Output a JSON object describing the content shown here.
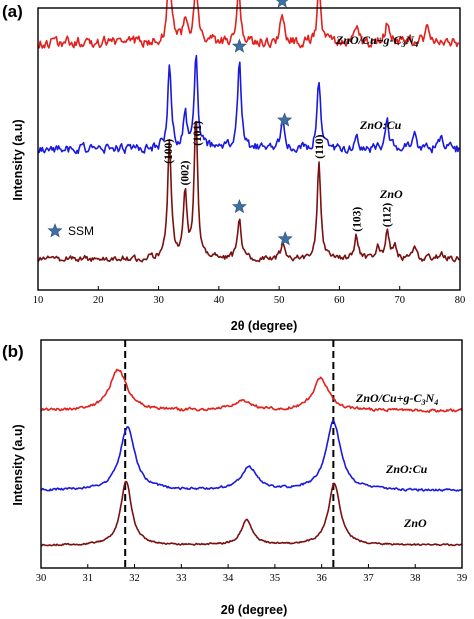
{
  "chart_data": [
    {
      "type": "line",
      "panel": "(a)",
      "xlabel": "2θ (degree)",
      "ylabel": "Intensity (a.u)",
      "xlim": [
        10,
        80
      ],
      "xticks": [
        "10",
        "20",
        "30",
        "40",
        "50",
        "60",
        "70",
        "80"
      ],
      "legend": {
        "marker": "star",
        "label": "SSM"
      },
      "series": [
        {
          "name": "ZnO/Cu+g-C3N4",
          "color": "#e0211e",
          "baseline": 0.88,
          "noise": 0.03,
          "peaks": [
            {
              "x": 31.8,
              "h": 0.28
            },
            {
              "x": 34.4,
              "h": 0.08
            },
            {
              "x": 36.2,
              "h": 0.22
            },
            {
              "x": 43.3,
              "h": 0.18
            },
            {
              "x": 50.5,
              "h": 0.1
            },
            {
              "x": 56.6,
              "h": 0.18
            },
            {
              "x": 62.8,
              "h": 0.04
            },
            {
              "x": 67.9,
              "h": 0.08
            },
            {
              "x": 74.5,
              "h": 0.04
            }
          ],
          "stars_at": [
            43.3,
            50.5
          ]
        },
        {
          "name": "ZnO:Cu",
          "color": "#1a1adf",
          "baseline": 0.5,
          "noise": 0.026,
          "peaks": [
            {
              "x": 31.8,
              "h": 0.3
            },
            {
              "x": 34.4,
              "h": 0.12
            },
            {
              "x": 36.2,
              "h": 0.34
            },
            {
              "x": 43.4,
              "h": 0.32
            },
            {
              "x": 50.6,
              "h": 0.1
            },
            {
              "x": 56.6,
              "h": 0.24
            },
            {
              "x": 62.8,
              "h": 0.06
            },
            {
              "x": 67.9,
              "h": 0.1
            },
            {
              "x": 72.5,
              "h": 0.05
            },
            {
              "x": 76.9,
              "h": 0.05
            }
          ],
          "stars_at": [
            43.4,
            50.9
          ]
        },
        {
          "name": "ZnO",
          "color": "#7a1111",
          "baseline": 0.11,
          "noise": 0.018,
          "peaks": [
            {
              "x": 31.8,
              "h": 0.42
            },
            {
              "x": 34.4,
              "h": 0.24
            },
            {
              "x": 36.2,
              "h": 0.5
            },
            {
              "x": 43.4,
              "h": 0.14
            },
            {
              "x": 50.6,
              "h": 0.06
            },
            {
              "x": 56.6,
              "h": 0.34
            },
            {
              "x": 62.8,
              "h": 0.08
            },
            {
              "x": 66.3,
              "h": 0.04
            },
            {
              "x": 67.9,
              "h": 0.1
            },
            {
              "x": 69.1,
              "h": 0.05
            },
            {
              "x": 72.5,
              "h": 0.03
            },
            {
              "x": 76.9,
              "h": 0.03
            }
          ],
          "stars_at": [
            43.4,
            51.0
          ]
        }
      ],
      "annotations": [
        {
          "label": "(100)",
          "x": 31.6
        },
        {
          "label": "(002)",
          "x": 34.3
        },
        {
          "label": "(101)",
          "x": 36.4
        },
        {
          "label": "(110)",
          "x": 56.6
        },
        {
          "label": "(103)",
          "x": 62.8
        },
        {
          "label": "(112)",
          "x": 67.8
        }
      ]
    },
    {
      "type": "line",
      "panel": "(b)",
      "xlabel": "2θ (degree)",
      "ylabel": "Intensity (a.u)",
      "xlim": [
        30,
        39
      ],
      "xticks": [
        "30",
        "31",
        "32",
        "33",
        "34",
        "35",
        "36",
        "37",
        "38",
        "39"
      ],
      "vlines": [
        31.8,
        36.25
      ],
      "series": [
        {
          "name": "ZnO/Cu+g-C3N4",
          "color": "#e0211e",
          "baseline": 0.69,
          "noise": 0.01,
          "peaks": [
            {
              "x": 31.65,
              "h": 0.18,
              "w": 0.22
            },
            {
              "x": 34.3,
              "h": 0.04,
              "w": 0.25
            },
            {
              "x": 35.98,
              "h": 0.14,
              "w": 0.2
            }
          ]
        },
        {
          "name": "ZnO:Cu",
          "color": "#1a1adf",
          "baseline": 0.34,
          "noise": 0.008,
          "peaks": [
            {
              "x": 31.85,
              "h": 0.28,
              "w": 0.19
            },
            {
              "x": 34.45,
              "h": 0.1,
              "w": 0.2
            },
            {
              "x": 36.25,
              "h": 0.3,
              "w": 0.19
            }
          ]
        },
        {
          "name": "ZnO",
          "color": "#7a1111",
          "baseline": 0.1,
          "noise": 0.006,
          "peaks": [
            {
              "x": 31.82,
              "h": 0.28,
              "w": 0.14
            },
            {
              "x": 34.4,
              "h": 0.11,
              "w": 0.14
            },
            {
              "x": 36.27,
              "h": 0.27,
              "w": 0.15
            }
          ]
        }
      ]
    }
  ]
}
